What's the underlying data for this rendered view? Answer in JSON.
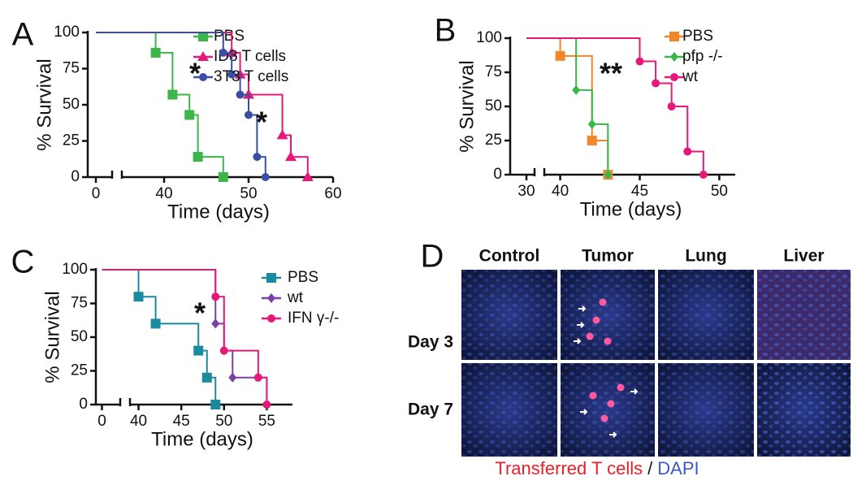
{
  "chart_data": [
    {
      "type": "survival",
      "panel_label": "A",
      "xlabel": "Time (days)",
      "ylabel": "% Survival",
      "xlim": [
        -2,
        60
      ],
      "x_break": [
        4,
        35
      ],
      "xticks": [
        0,
        40,
        50,
        60
      ],
      "ylim": [
        0,
        100
      ],
      "yticks": [
        0,
        25,
        50,
        75,
        100
      ],
      "annotations": [
        "*",
        "*"
      ],
      "series": [
        {
          "name": "PBS",
          "color": "#3cb54a",
          "marker": "square",
          "x": [
            0,
            39,
            41,
            43,
            44,
            47
          ],
          "values": [
            100,
            86,
            57,
            43,
            14,
            0
          ]
        },
        {
          "name": "ID8 T cells",
          "color": "#e6197a",
          "marker": "triangle",
          "x": [
            0,
            48,
            49,
            50,
            54,
            55,
            57
          ],
          "values": [
            100,
            86,
            71,
            57,
            29,
            14,
            0
          ]
        },
        {
          "name": "3T3 T cells",
          "color": "#3a4fa3",
          "marker": "circle",
          "x": [
            0,
            47,
            48,
            49,
            50,
            51,
            52
          ],
          "values": [
            100,
            86,
            71,
            57,
            43,
            14,
            0
          ]
        }
      ]
    },
    {
      "type": "survival",
      "panel_label": "B",
      "xlabel": "Time (days)",
      "ylabel": "% Survival",
      "xlim": [
        26,
        51
      ],
      "x_break": [
        32,
        39
      ],
      "xticks": [
        30,
        40,
        45,
        50
      ],
      "ylim": [
        0,
        100
      ],
      "yticks": [
        0,
        25,
        50,
        75,
        100
      ],
      "annotations": [
        "**"
      ],
      "series": [
        {
          "name": "PBS",
          "color": "#f0872a",
          "marker": "square",
          "x": [
            30,
            40,
            42,
            43
          ],
          "values": [
            100,
            87,
            25,
            0
          ]
        },
        {
          "name": "pfp -/-",
          "color": "#3cb54a",
          "marker": "diamond",
          "x": [
            30,
            41,
            42,
            43
          ],
          "values": [
            100,
            62,
            37,
            0
          ]
        },
        {
          "name": "wt",
          "color": "#e6197a",
          "marker": "circle",
          "x": [
            30,
            45,
            46,
            47,
            48,
            49
          ],
          "values": [
            100,
            83,
            67,
            50,
            17,
            0
          ]
        }
      ]
    },
    {
      "type": "survival",
      "panel_label": "C",
      "xlabel": "Time (days)",
      "ylabel": "% Survival",
      "xlim": [
        -1.5,
        58
      ],
      "x_break": [
        4.5,
        39
      ],
      "xticks": [
        0,
        40,
        45,
        50,
        55
      ],
      "ylim": [
        0,
        100
      ],
      "yticks": [
        0,
        25,
        50,
        75,
        100
      ],
      "annotations": [
        "*"
      ],
      "series": [
        {
          "name": "PBS",
          "color": "#1a8a9e",
          "marker": "square",
          "x": [
            0,
            40,
            42,
            47,
            48,
            49
          ],
          "values": [
            100,
            80,
            60,
            40,
            20,
            0
          ]
        },
        {
          "name": "wt",
          "color": "#7b3fa8",
          "marker": "diamond",
          "x": [
            0,
            49,
            50,
            51,
            55
          ],
          "values": [
            100,
            60,
            40,
            20,
            0
          ]
        },
        {
          "name": "IFN γ-/-",
          "color": "#e6197a",
          "marker": "circle",
          "x": [
            0,
            49,
            50,
            54,
            55
          ],
          "values": [
            100,
            80,
            40,
            20,
            0
          ]
        }
      ]
    }
  ],
  "panel_d": {
    "panel_label": "D",
    "columns": [
      "Control",
      "Tumor",
      "Lung",
      "Liver"
    ],
    "rows": [
      "Day 3",
      "Day 7"
    ],
    "caption": {
      "red": "Transferred T cells",
      "sep": "/",
      "blue": "DAPI"
    }
  }
}
